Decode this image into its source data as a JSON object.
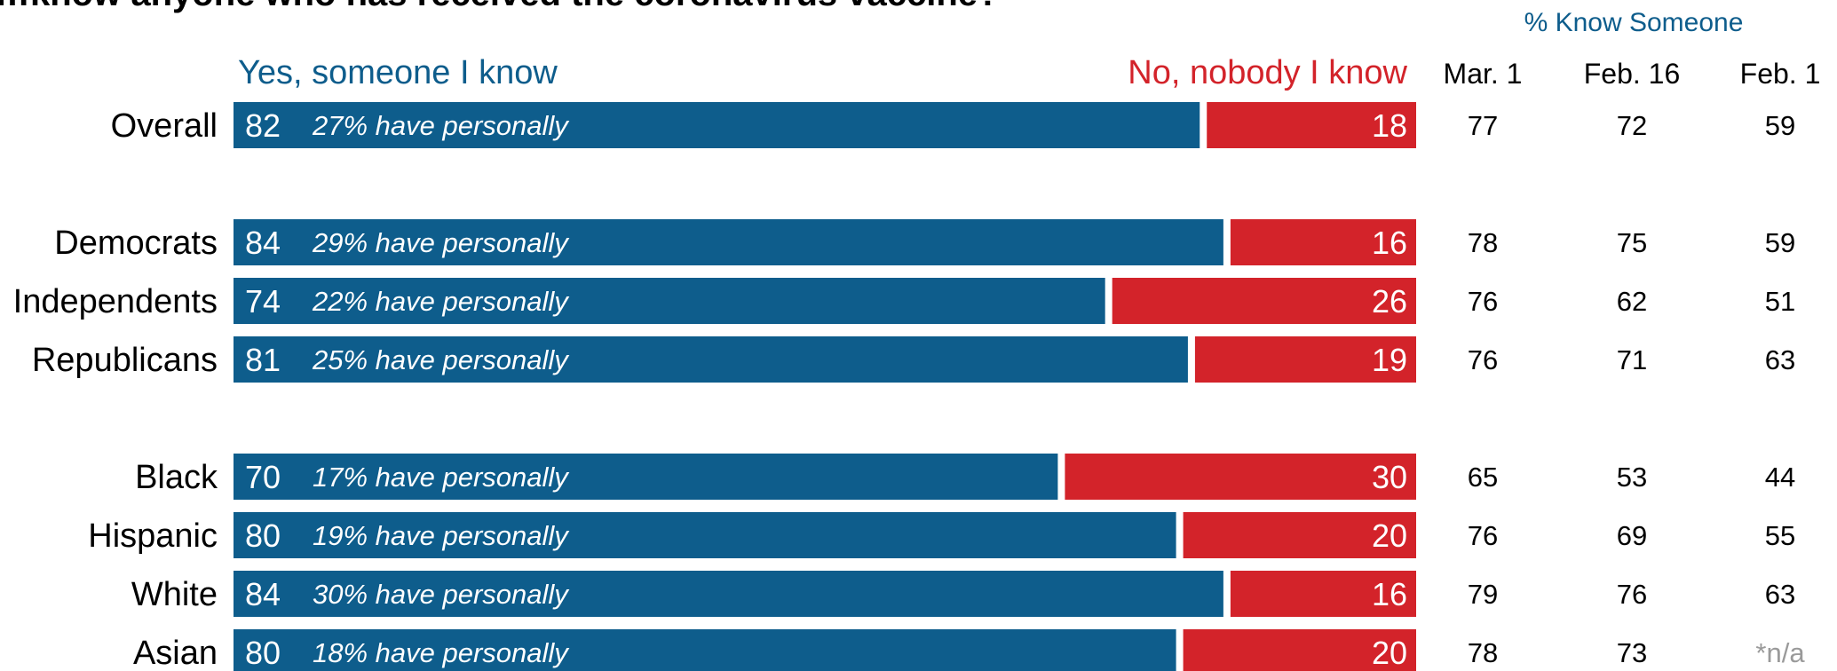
{
  "chart_data": {
    "type": "bar",
    "stacked": true,
    "orientation": "horizontal",
    "title": "…know anyone who has received the coronavirus vaccine?",
    "series": [
      {
        "name": "Yes, someone I know",
        "color": "#0e5d8c",
        "values": [
          82,
          84,
          74,
          81,
          70,
          80,
          84,
          80
        ]
      },
      {
        "name": "No, nobody I know",
        "color": "#d3232a",
        "values": [
          18,
          16,
          26,
          19,
          30,
          20,
          16,
          20
        ]
      }
    ],
    "categories": [
      "Overall",
      "Democrats",
      "Independents",
      "Republicans",
      "Black",
      "Hispanic",
      "White",
      "Asian"
    ],
    "groups": [
      {
        "rows": [
          "Overall"
        ]
      },
      {
        "rows": [
          "Democrats",
          "Independents",
          "Republicans"
        ]
      },
      {
        "rows": [
          "Black",
          "Hispanic",
          "White",
          "Asian"
        ]
      }
    ],
    "annotations": [
      "27% have personally",
      "29% have personally",
      "22% have personally",
      "25% have personally",
      "17% have personally",
      "19% have personally",
      "30% have personally",
      "18% have personally"
    ],
    "trend_table": {
      "header": "% Know Someone",
      "columns": [
        "Mar. 1",
        "Feb. 16",
        "Feb. 1"
      ],
      "rows": [
        [
          "77",
          "72",
          "59"
        ],
        [
          "78",
          "75",
          "59"
        ],
        [
          "76",
          "62",
          "51"
        ],
        [
          "76",
          "71",
          "63"
        ],
        [
          "65",
          "53",
          "44"
        ],
        [
          "76",
          "69",
          "55"
        ],
        [
          "79",
          "76",
          "63"
        ],
        [
          "78",
          "73",
          "*n/a"
        ]
      ]
    },
    "xlim": [
      0,
      100
    ],
    "legend": "top"
  }
}
